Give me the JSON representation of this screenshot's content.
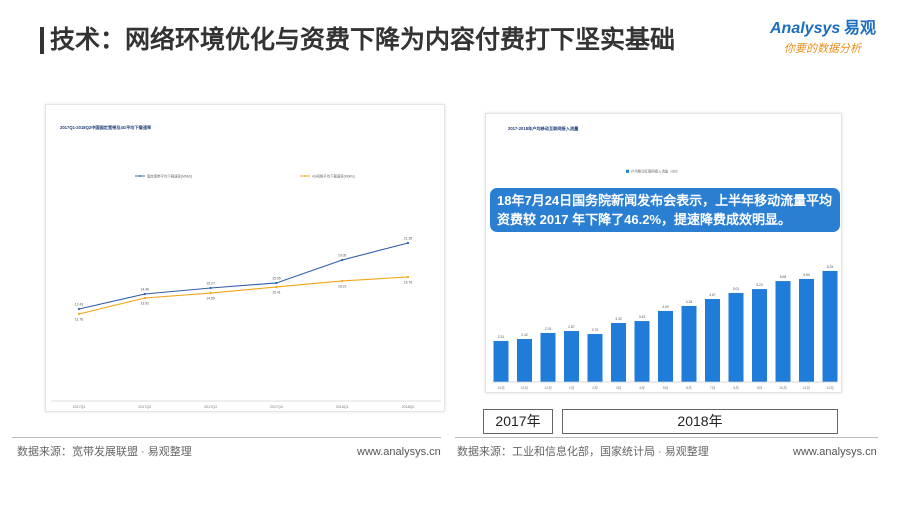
{
  "header": {
    "title": "技术：网络环境优化与资费下降为内容付费打下坚实基础"
  },
  "logo": {
    "brand": "Analysys",
    "brand_cn": "易观",
    "tagline": "你要的数据分析"
  },
  "left_panel": {
    "source": "数据来源：宽带发展联盟 · 易观整理",
    "url": "www.analysys.cn"
  },
  "right_panel": {
    "callout_lines": [
      "18年7月24日国务院新闻发布会表示，上半年移动流量平均",
      "资费较 2017 年下降了46.2%，提速降费成效明显。"
    ],
    "year_labels": [
      "2017年",
      "2018年"
    ],
    "source": "数据来源：工业和信息化部，国家统计局 · 易观整理",
    "url": "www.analysys.cn"
  },
  "colors": {
    "title_bar": "#333333",
    "brand_blue": "#1c6ec0",
    "brand_orange": "#e8901a",
    "callout": "#2b7fd3"
  },
  "chart_data": [
    {
      "type": "line",
      "title": "2017Q1-2018Q2中国固定宽带及4G平均下载速率",
      "categories": [
        "2017Q1",
        "2017Q2",
        "2017Q3",
        "2017Q4",
        "2018Q1",
        "2018Q2"
      ],
      "series": [
        {
          "name": "固定宽带平均下载速率(Mbit/s)",
          "color": "#2f5ea8",
          "values": [
            12.43,
            14.46,
            15.27,
            15.95,
            19.05,
            21.35
          ]
        },
        {
          "name": "4G网络平均下载速率(Mbit/s)",
          "color": "#f2a515",
          "values": [
            11.76,
            13.92,
            14.59,
            15.41,
            16.22,
            16.76
          ]
        }
      ],
      "ylim": [
        0,
        30
      ],
      "grid": false,
      "legend": "top"
    },
    {
      "type": "bar",
      "title": "2017-2018年户均移动互联网接入流量",
      "categories": [
        "10月",
        "11月",
        "12月",
        "1月",
        "2月",
        "3月",
        "4月",
        "5月",
        "6月",
        "7月",
        "8月",
        "9月",
        "10月",
        "11月",
        "12月"
      ],
      "series": [
        {
          "name": "户均移动互联网接入流量（GB）",
          "color": "#1f7cd8",
          "values": [
            2.31,
            2.42,
            2.76,
            2.87,
            2.7,
            3.32,
            3.43,
            4.0,
            4.28,
            4.67,
            5.01,
            5.23,
            5.68,
            5.8,
            6.25
          ]
        }
      ],
      "ylim": [
        0,
        13
      ],
      "grid": false,
      "legend": "top"
    }
  ]
}
